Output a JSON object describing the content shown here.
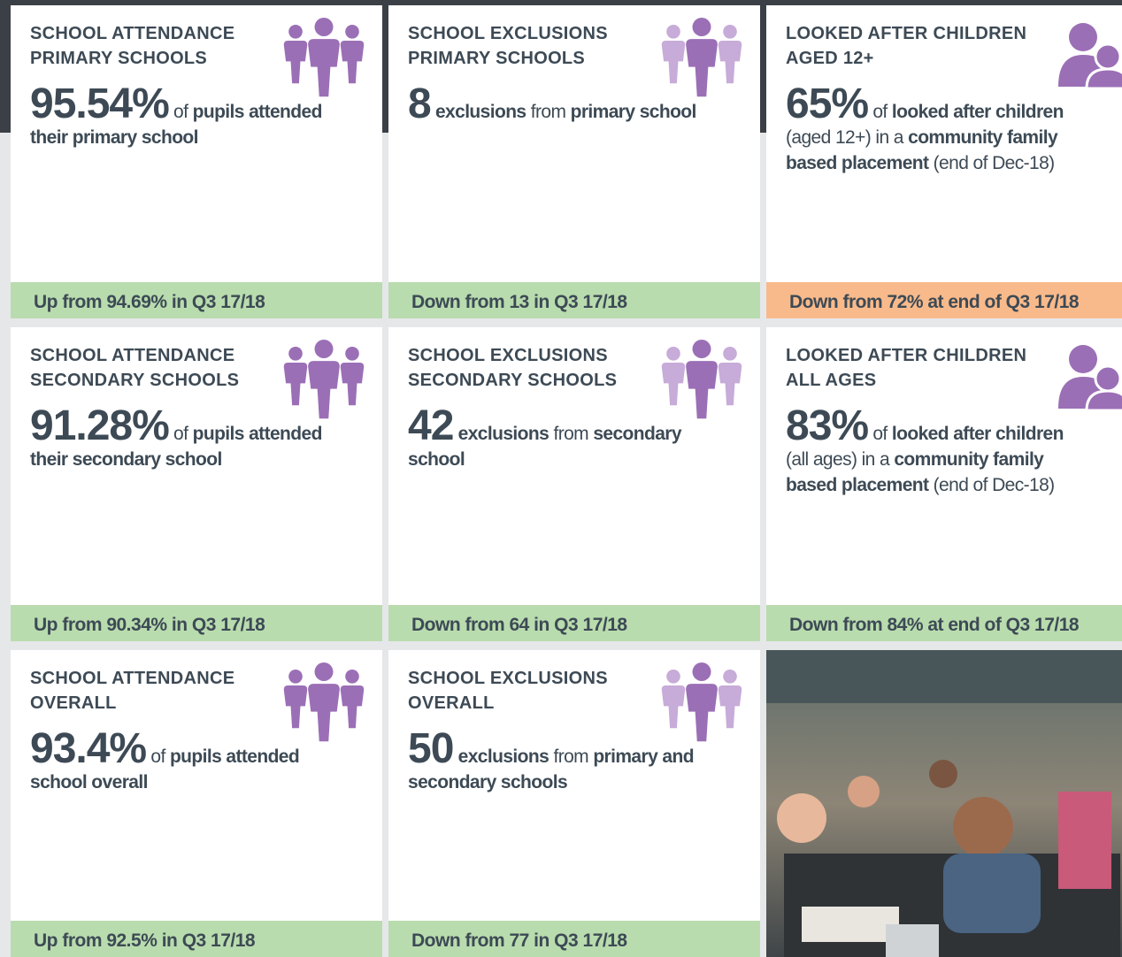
{
  "cards": [
    {
      "title": [
        "SCHOOL ATTENDANCE",
        "PRIMARY SCHOOLS"
      ],
      "figure": "95.54%",
      "body": [
        {
          "text": "of"
        },
        {
          "text": "pupils attended their primary school",
          "bold": true
        }
      ],
      "footer": "Up from 94.69% in Q3 17/18",
      "footer_color": "#b9dcae"
    },
    {
      "title": [
        "SCHOOL EXCLUSIONS",
        "PRIMARY SCHOOLS"
      ],
      "figure": "8",
      "body": [
        {
          "text": "exclusions",
          "bold": true
        },
        {
          "text": "from"
        },
        {
          "text": "primary school",
          "bold": true
        }
      ],
      "footer": "Down from 13 in Q3 17/18",
      "footer_color": "#b9dcae"
    },
    {
      "title": [
        "LOOKED AFTER CHILDREN",
        "AGED 12+"
      ],
      "figure": "65%",
      "body": [
        {
          "text": "of"
        },
        {
          "text": "looked after children",
          "bold": true
        },
        {
          "text": "(aged 12+) in a"
        },
        {
          "text": "community family based placement",
          "bold": true
        },
        {
          "text": "(end of Dec-18)"
        }
      ],
      "footer": "Down from 72% at end of Q3 17/18",
      "footer_color": "#f9ba8b"
    },
    {
      "title": [
        "SCHOOL ATTENDANCE",
        "SECONDARY SCHOOLS"
      ],
      "figure": "91.28%",
      "body": [
        {
          "text": "of"
        },
        {
          "text": "pupils attended their secondary school",
          "bold": true
        }
      ],
      "footer": "Up from 90.34% in Q3 17/18",
      "footer_color": "#b9dcae"
    },
    {
      "title": [
        "SCHOOL EXCLUSIONS",
        "SECONDARY SCHOOLS"
      ],
      "figure": "42",
      "body": [
        {
          "text": "exclusions",
          "bold": true
        },
        {
          "text": "from"
        },
        {
          "text": "secondary school",
          "bold": true
        }
      ],
      "footer": "Down from 64 in Q3 17/18",
      "footer_color": "#b9dcae"
    },
    {
      "title": [
        "LOOKED AFTER CHILDREN",
        "ALL AGES"
      ],
      "figure": "83%",
      "body": [
        {
          "text": "of"
        },
        {
          "text": "looked after children",
          "bold": true
        },
        {
          "text": "(all ages) in a"
        },
        {
          "text": "community family based placement",
          "bold": true
        },
        {
          "text": "(end of Dec-18)"
        }
      ],
      "footer": "Down from 84% at end of Q3 17/18",
      "footer_color": "#b9dcae"
    },
    {
      "title": [
        "SCHOOL ATTENDANCE",
        "OVERALL"
      ],
      "figure": "93.4%",
      "body": [
        {
          "text": "of"
        },
        {
          "text": "pupils attended school overall",
          "bold": true
        }
      ],
      "footer": "Up from 92.5% in Q3 17/18",
      "footer_color": "#b9dcae"
    },
    {
      "title": [
        "SCHOOL EXCLUSIONS",
        "OVERALL"
      ],
      "figure": "50",
      "body": [
        {
          "text": "exclusions",
          "bold": true
        },
        {
          "text": "from"
        },
        {
          "text": "primary and secondary schools",
          "bold": true
        }
      ],
      "footer": "Down from 77 in Q3 17/18",
      "footer_color": "#b9dcae"
    }
  ]
}
